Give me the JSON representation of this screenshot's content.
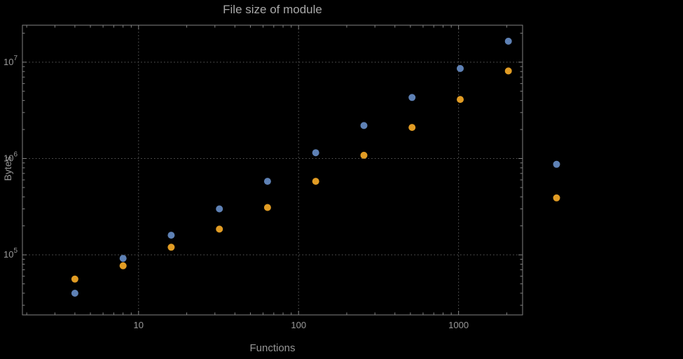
{
  "colors": {
    "background": "#000000",
    "frame": "#828282",
    "grid": "#5e5e5e",
    "text": "#999999",
    "title_text": "#a9a9a9",
    "series_blue": "#5e81b5",
    "series_orange": "#e19c24"
  },
  "chart_data": {
    "type": "scatter",
    "title": "File size of module",
    "xlabel": "Functions",
    "ylabel": "Bytes",
    "x_scale": "log",
    "y_scale": "log",
    "grid": "dotted major gridlines",
    "legend": "none",
    "xlim": [
      1.88,
      2512
    ],
    "ylim": [
      23800,
      24200000
    ],
    "x_ticks": [
      10,
      100,
      1000
    ],
    "x_tick_labels": [
      "10",
      "100",
      "1000"
    ],
    "y_ticks": [
      100000,
      1000000,
      10000000
    ],
    "y_tick_labels": [
      "10^5",
      "10^6",
      "10^7"
    ],
    "x": [
      4,
      8,
      16,
      32,
      64,
      128,
      256,
      512,
      1024,
      2048,
      4096
    ],
    "series": [
      {
        "name": "blue-series",
        "color": "#5e81b5",
        "values": [
          40000,
          92000,
          160000,
          300000,
          580000,
          1150000,
          2200000,
          4300000,
          8600000,
          16500000,
          870000
        ]
      },
      {
        "name": "orange-series",
        "color": "#e19c24",
        "values": [
          56000,
          77000,
          120000,
          185000,
          310000,
          580000,
          1080000,
          2100000,
          4100000,
          8100000,
          390000
        ]
      }
    ]
  }
}
